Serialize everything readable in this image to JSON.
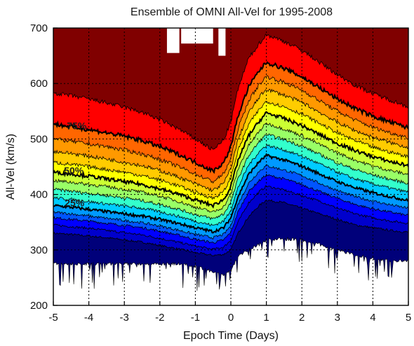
{
  "chart_data": {
    "type": "area",
    "title": "Ensemble of OMNI All-Vel for 1995-2008",
    "xlabel": "Epoch Time (Days)",
    "ylabel": "All-Vel (km/s)",
    "xlim": [
      -5,
      5
    ],
    "ylim": [
      200,
      700
    ],
    "xticks": [
      "-5",
      "-4",
      "-3",
      "-2",
      "-1",
      "0",
      "1",
      "2",
      "3",
      "4",
      "5"
    ],
    "yticks": [
      "200",
      "300",
      "400",
      "500",
      "600",
      "700"
    ],
    "grid": true,
    "x": [
      -5,
      -4.5,
      -4,
      -3.5,
      -3,
      -2.5,
      -2,
      -1.5,
      -1,
      -0.5,
      -0.2,
      0,
      0.2,
      0.5,
      0.8,
      1,
      1.5,
      2,
      2.5,
      3,
      3.5,
      4,
      4.5,
      5
    ],
    "min_envelope": [
      275,
      275,
      275,
      275,
      275,
      275,
      275,
      275,
      270,
      260,
      255,
      262,
      290,
      300,
      310,
      318,
      320,
      318,
      310,
      300,
      290,
      285,
      280,
      280
    ],
    "percentile_bands": [
      {
        "color": "#00007a",
        "values": [
          330,
          328,
          325,
          322,
          318,
          314,
          308,
          302,
          295,
          290,
          292,
          300,
          330,
          360,
          380,
          390,
          385,
          375,
          365,
          355,
          345,
          340,
          335,
          332
        ]
      },
      {
        "color": "#0000cc",
        "values": [
          345,
          342,
          339,
          335,
          331,
          327,
          321,
          314,
          307,
          301,
          305,
          318,
          350,
          385,
          405,
          415,
          408,
          398,
          388,
          375,
          365,
          358,
          352,
          348
        ]
      },
      {
        "color": "#0000ff",
        "values": [
          358,
          355,
          352,
          348,
          344,
          340,
          334,
          327,
          319,
          313,
          318,
          332,
          368,
          405,
          425,
          435,
          428,
          418,
          405,
          393,
          382,
          374,
          368,
          362
        ]
      },
      {
        "color": "#0055ff",
        "values": [
          368,
          365,
          361,
          357,
          353,
          349,
          343,
          336,
          328,
          322,
          328,
          344,
          382,
          420,
          442,
          452,
          444,
          434,
          420,
          407,
          396,
          388,
          381,
          375
        ]
      },
      {
        "color": "#0099ff",
        "values": [
          380,
          377,
          373,
          369,
          365,
          361,
          355,
          348,
          340,
          333,
          340,
          358,
          396,
          436,
          459,
          470,
          462,
          451,
          437,
          423,
          412,
          403,
          396,
          389
        ]
      },
      {
        "color": "#00ccff",
        "values": [
          394,
          391,
          387,
          383,
          379,
          375,
          369,
          361,
          352,
          344,
          352,
          372,
          412,
          453,
          477,
          489,
          480,
          469,
          455,
          440,
          428,
          419,
          411,
          404
        ]
      },
      {
        "color": "#33ffcc",
        "values": [
          409,
          406,
          402,
          398,
          394,
          389,
          382,
          374,
          364,
          356,
          365,
          386,
          428,
          470,
          495,
          508,
          499,
          487,
          472,
          457,
          445,
          435,
          427,
          420
        ]
      },
      {
        "color": "#99ff66",
        "values": [
          425,
          422,
          418,
          414,
          409,
          404,
          397,
          388,
          377,
          368,
          378,
          400,
          445,
          488,
          514,
          528,
          518,
          506,
          490,
          475,
          462,
          451,
          443,
          436
        ]
      },
      {
        "color": "#ccff33",
        "values": [
          440,
          437,
          433,
          428,
          423,
          418,
          410,
          401,
          390,
          380,
          391,
          414,
          461,
          506,
          532,
          547,
          537,
          524,
          508,
          492,
          479,
          468,
          459,
          452
        ]
      },
      {
        "color": "#ffff00",
        "values": [
          458,
          454,
          450,
          445,
          440,
          434,
          426,
          416,
          404,
          393,
          405,
          430,
          479,
          526,
          553,
          568,
          558,
          545,
          528,
          511,
          497,
          485,
          476,
          468
        ]
      },
      {
        "color": "#ffcc00",
        "values": [
          478,
          474,
          469,
          464,
          458,
          452,
          443,
          432,
          419,
          407,
          420,
          447,
          498,
          547,
          575,
          590,
          579,
          566,
          548,
          530,
          515,
          503,
          493,
          485
        ]
      },
      {
        "color": "#ff9900",
        "values": [
          500,
          496,
          491,
          486,
          480,
          473,
          463,
          451,
          437,
          423,
          437,
          465,
          518,
          569,
          598,
          613,
          602,
          588,
          569,
          550,
          534,
          521,
          511,
          502
        ]
      },
      {
        "color": "#ff6600",
        "values": [
          527,
          522,
          517,
          511,
          505,
          497,
          486,
          473,
          458,
          442,
          457,
          486,
          541,
          594,
          623,
          638,
          627,
          612,
          592,
          572,
          555,
          541,
          530,
          520
        ]
      },
      {
        "color": "#ff0000",
        "values": [
          583,
          578,
          572,
          565,
          557,
          548,
          535,
          519,
          500,
          480,
          498,
          531,
          590,
          645,
          672,
          688,
          676,
          660,
          638,
          616,
          597,
          582,
          570,
          558
        ]
      }
    ],
    "max_band_color": "#800000",
    "median_line_indices": [
      4,
      8,
      12
    ],
    "quartile_labels": [
      {
        "text": "75%",
        "x": -4.62,
        "y": 524
      },
      {
        "text": "50%",
        "x": -4.7,
        "y": 443
      },
      {
        "text": "25%",
        "x": -4.68,
        "y": 385
      }
    ],
    "max_gaps": [
      {
        "x0": -1.8,
        "x1": -1.45,
        "y": 655
      },
      {
        "x0": -1.4,
        "x1": -0.5,
        "y": 672
      },
      {
        "x0": -0.35,
        "x1": -0.15,
        "y": 650
      }
    ]
  }
}
